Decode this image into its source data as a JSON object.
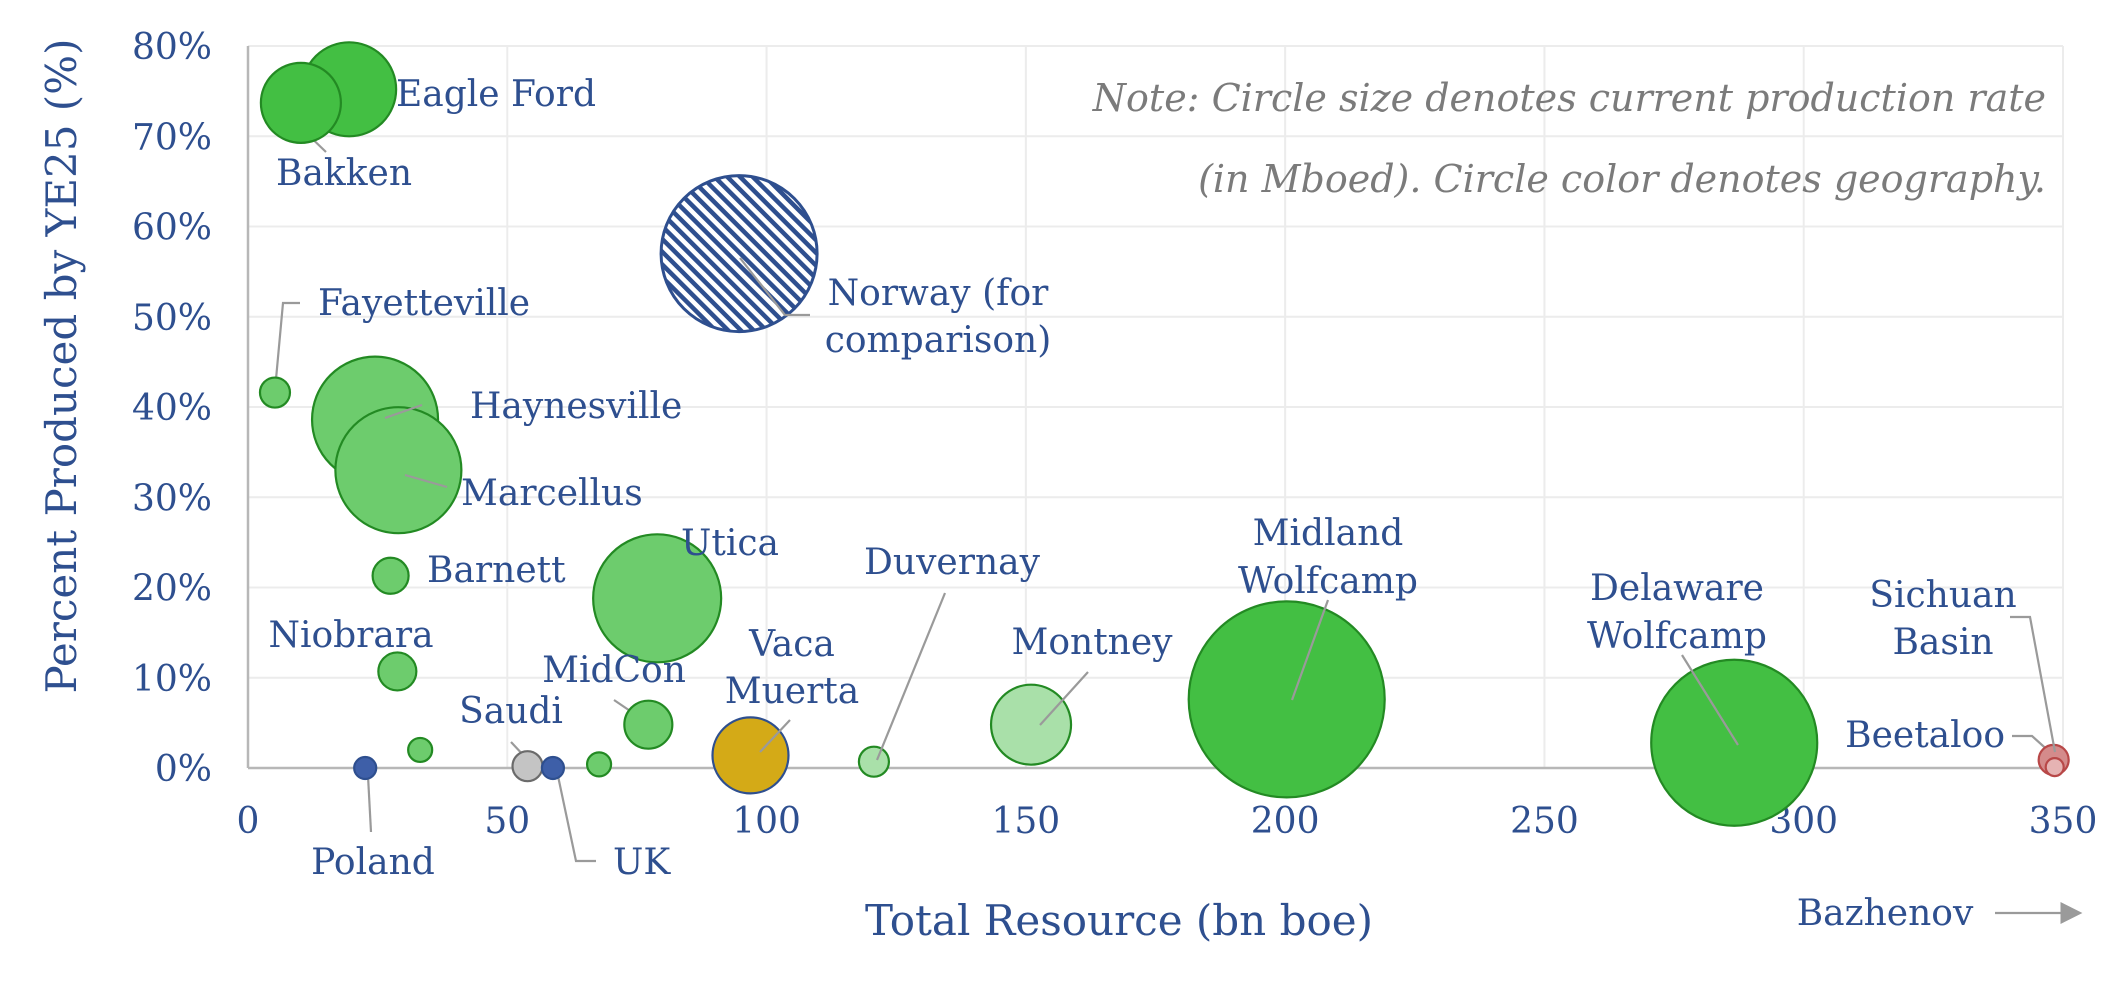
{
  "chart_data": {
    "type": "scatter",
    "xlabel": "Total Resource (bn boe)",
    "ylabel": "Percent Produced by YE25 (%)",
    "xlim": [
      0,
      350
    ],
    "ylim": [
      0,
      80
    ],
    "x_ticks": [
      "0",
      "50",
      "100",
      "150",
      "200",
      "250",
      "300",
      "350"
    ],
    "x_tick_values": [
      0,
      50,
      100,
      150,
      200,
      250,
      300,
      350
    ],
    "y_ticks": [
      "0%",
      "10%",
      "20%",
      "30%",
      "40%",
      "50%",
      "60%",
      "70%",
      "80%"
    ],
    "y_tick_values": [
      0,
      10,
      20,
      30,
      40,
      50,
      60,
      70,
      80
    ],
    "grid": true,
    "note_lines": [
      "Note: Circle size denotes current production rate",
      "(in Mboed). Circle color denotes geography."
    ],
    "offscale_label": "Bazhenov",
    "colors": {
      "us_green": "#43bf43",
      "us_light": "#6dcc6d",
      "canada_light": "#a9e0a9",
      "argentina": "#d4aa17",
      "norway": "#2e4f8f",
      "china_aus": "#d48b8b",
      "saudi": "#c4c4c4",
      "europe_blue": "#3e5fa8"
    },
    "points": [
      {
        "label": "Eagle Ford",
        "x": 19.5,
        "y": 75.2,
        "size": 47,
        "color": "#43bf43"
      },
      {
        "label": "Bakken",
        "x": 10.2,
        "y": 73.7,
        "size": 40,
        "color": "#43bf43"
      },
      {
        "label": "Fayetteville",
        "x": 5.2,
        "y": 41.6,
        "size": 15,
        "color": "#6dcc6d"
      },
      {
        "label": "Haynesville",
        "x": 24.5,
        "y": 38.6,
        "size": 63,
        "color": "#6dcc6d"
      },
      {
        "label": "Marcellus",
        "x": 29.0,
        "y": 33.0,
        "size": 63,
        "color": "#6dcc6d"
      },
      {
        "label": "Barnett",
        "x": 27.5,
        "y": 21.3,
        "size": 18,
        "color": "#6dcc6d"
      },
      {
        "label": "Niobrara",
        "x": 28.8,
        "y": 10.7,
        "size": 19,
        "color": "#6dcc6d"
      },
      {
        "label": "",
        "x": 33.2,
        "y": 2.0,
        "size": 12,
        "color": "#6dcc6d"
      },
      {
        "label": "Poland",
        "x": 22.6,
        "y": 0.0,
        "size": 11,
        "color": "#3e5fa8"
      },
      {
        "label": "Saudi",
        "x": 53.9,
        "y": 0.2,
        "size": 15,
        "color": "#c4c4c4"
      },
      {
        "label": "UK",
        "x": 58.8,
        "y": 0.0,
        "size": 11,
        "color": "#3e5fa8"
      },
      {
        "label": "",
        "x": 67.7,
        "y": 0.4,
        "size": 12,
        "color": "#6dcc6d"
      },
      {
        "label": "MidCon",
        "x": 77.2,
        "y": 4.8,
        "size": 24,
        "color": "#6dcc6d"
      },
      {
        "label": "Utica",
        "x": 78.9,
        "y": 18.8,
        "size": 64,
        "color": "#6dcc6d"
      },
      {
        "label": "Vaca Muerta",
        "x": 96.9,
        "y": 1.4,
        "size": 38,
        "color": "#d4aa17"
      },
      {
        "label": "Norway (for comparison)",
        "x": 94.7,
        "y": 57.0,
        "size": 78,
        "color": "#2e4f8f",
        "pattern": "hatched"
      },
      {
        "label": "Duvernay",
        "x": 120.7,
        "y": 0.7,
        "size": 15,
        "color": "#a9e0a9"
      },
      {
        "label": "Montney",
        "x": 151.0,
        "y": 4.8,
        "size": 40,
        "color": "#a9e0a9"
      },
      {
        "label": "Midland Wolfcamp",
        "x": 200.3,
        "y": 7.6,
        "size": 98,
        "color": "#43bf43"
      },
      {
        "label": "Delaware Wolfcamp",
        "x": 286.6,
        "y": 2.8,
        "size": 83,
        "color": "#43bf43"
      },
      {
        "label": "Sichuan Basin",
        "x": 348.2,
        "y": 0.9,
        "size": 15,
        "color": "#d48b8b"
      },
      {
        "label": "Beetaloo",
        "x": 348.4,
        "y": 0.1,
        "size": 9,
        "color": "#e6b3b3"
      }
    ],
    "point_labels": [
      {
        "text": "Eagle Ford",
        "lines": [
          "Eagle Ford"
        ]
      },
      {
        "text": "Bakken",
        "lines": [
          "Bakken"
        ]
      },
      {
        "text": "Fayetteville",
        "lines": [
          "Fayetteville"
        ]
      },
      {
        "text": "Haynesville",
        "lines": [
          "Haynesville"
        ]
      },
      {
        "text": "Marcellus",
        "lines": [
          "Marcellus"
        ]
      },
      {
        "text": "Barnett",
        "lines": [
          "Barnett"
        ]
      },
      {
        "text": "Niobrara",
        "lines": [
          "Niobrara"
        ]
      },
      {
        "text": "Poland",
        "lines": [
          "Poland"
        ]
      },
      {
        "text": "Saudi",
        "lines": [
          "Saudi"
        ]
      },
      {
        "text": "UK",
        "lines": [
          "UK"
        ]
      },
      {
        "text": "MidCon",
        "lines": [
          "MidCon"
        ]
      },
      {
        "text": "Utica",
        "lines": [
          "Utica"
        ]
      },
      {
        "text": "Vaca Muerta",
        "lines": [
          "Vaca",
          "Muerta"
        ]
      },
      {
        "text": "Norway (for comparison)",
        "lines": [
          "Norway (for",
          "comparison)"
        ]
      },
      {
        "text": "Duvernay",
        "lines": [
          "Duvernay"
        ]
      },
      {
        "text": "Montney",
        "lines": [
          "Montney"
        ]
      },
      {
        "text": "Midland Wolfcamp",
        "lines": [
          "Midland",
          "Wolfcamp"
        ]
      },
      {
        "text": "Delaware Wolfcamp",
        "lines": [
          "Delaware",
          "Wolfcamp"
        ]
      },
      {
        "text": "Sichuan Basin",
        "lines": [
          "Sichuan",
          "Basin"
        ]
      },
      {
        "text": "Beetaloo",
        "lines": [
          "Beetaloo"
        ]
      }
    ]
  }
}
